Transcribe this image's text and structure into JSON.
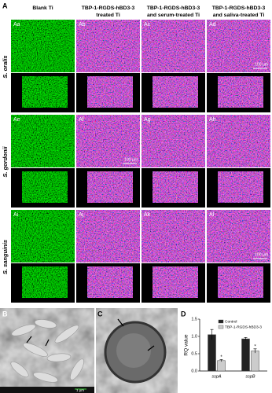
{
  "figure": {
    "panel_letters": [
      "A",
      "B",
      "C",
      "D"
    ],
    "column_headers": [
      [
        "Blank Ti"
      ],
      [
        "TBP-1-RGDS-hBD3-3",
        "treated Ti"
      ],
      [
        "TBP-1-RGDS-hBD3-3",
        "and serum-treated Ti"
      ],
      [
        "TBP-1-RGDS-hBD3-3",
        "and saliva-treated Ti"
      ]
    ],
    "rows": [
      {
        "label": "S. oralis",
        "panels": [
          {
            "tag": "Aa"
          },
          {
            "tag": "Ab"
          },
          {
            "tag": "Ac"
          },
          {
            "tag": "Ad",
            "scale": "100 µm"
          }
        ]
      },
      {
        "label": "S. gordonii",
        "panels": [
          {
            "tag": "Ae"
          },
          {
            "tag": "Af",
            "scale": "100 µm"
          },
          {
            "tag": "Ag"
          },
          {
            "tag": "Ah"
          }
        ]
      },
      {
        "label": "S. sanguinis",
        "panels": [
          {
            "tag": "Ai"
          },
          {
            "tag": "Aj"
          },
          {
            "tag": "Ak"
          },
          {
            "tag": "Al",
            "scale": "100 µm"
          }
        ]
      }
    ],
    "sem_scale": "1 µm"
  },
  "chart_data": {
    "type": "bar",
    "ylabel": "RQ value",
    "categories": [
      "sspA",
      "sspB"
    ],
    "series": [
      {
        "name": "Control",
        "color": "#222222",
        "values": [
          1.05,
          0.93
        ],
        "errors": [
          0.15,
          0.04
        ]
      },
      {
        "name": "TBP-1-RGDS-hBD3-3",
        "color": "#cccccc",
        "values": [
          0.3,
          0.58
        ],
        "errors": [
          0.03,
          0.06
        ]
      }
    ],
    "annotations": [
      "*",
      "*"
    ],
    "ylim": [
      0,
      1.5
    ],
    "yticks": [
      {
        "value": 0,
        "label": "0.0"
      },
      {
        "value": 0.5,
        "label": "0.5"
      },
      {
        "value": 1,
        "label": "1.0"
      },
      {
        "value": 1.5,
        "label": "1.5"
      }
    ],
    "legend": "top-right"
  }
}
